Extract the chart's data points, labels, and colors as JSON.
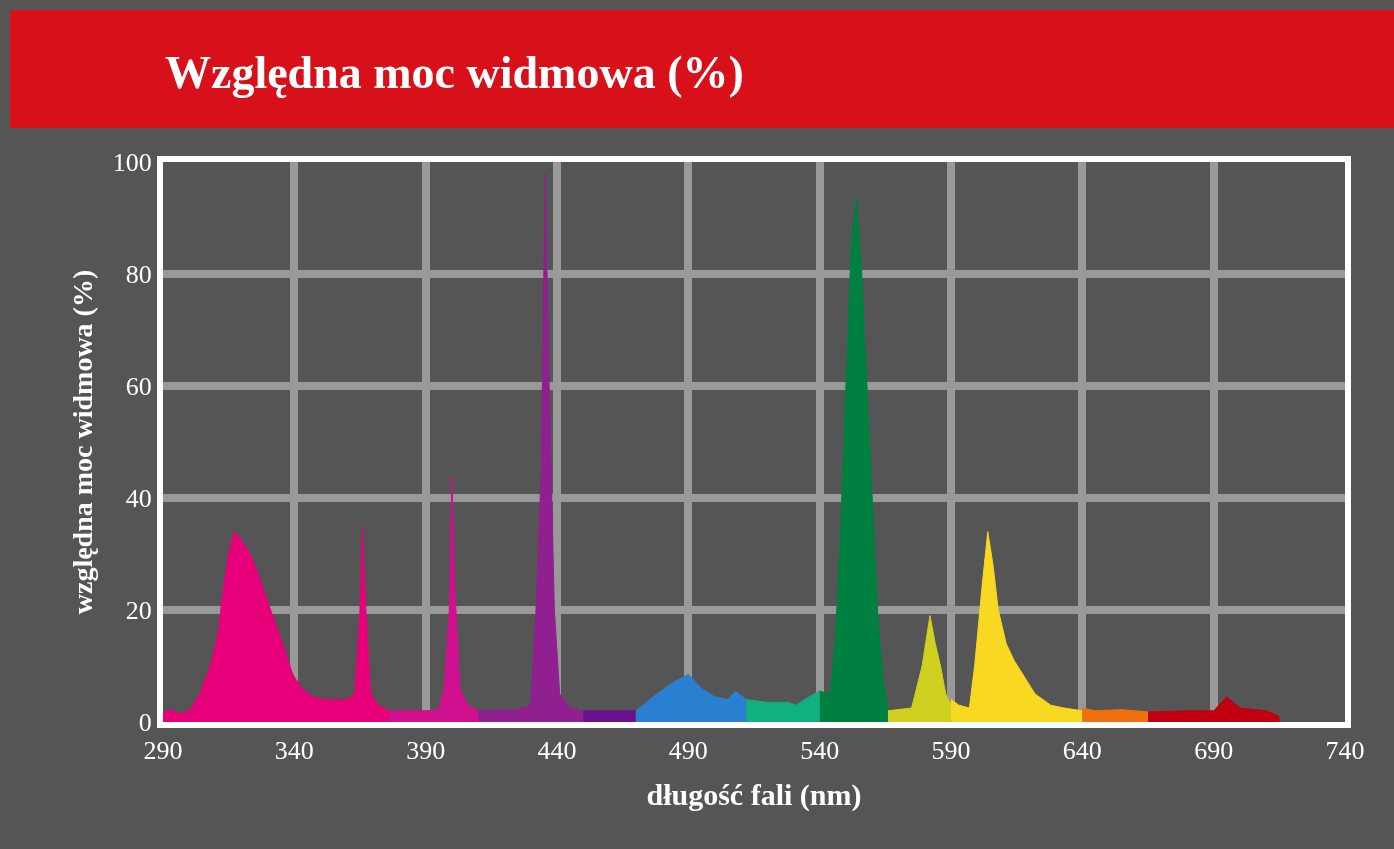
{
  "chart_data": {
    "type": "area",
    "title": "Względna moc widmowa (%)",
    "xlabel": "długość fali (nm)",
    "ylabel": "względna moc widmowa (%)",
    "xlim": [
      290,
      740
    ],
    "xticks": [
      290,
      340,
      390,
      440,
      490,
      540,
      590,
      640,
      690,
      740
    ],
    "ylim": [
      0,
      100
    ],
    "yticks": [
      0,
      20,
      40,
      60,
      80,
      100
    ],
    "grid": true,
    "series": [
      {
        "color": "#e8007a",
        "x": [
          290,
          293,
          296,
          300,
          304,
          308,
          311,
          313,
          315,
          317,
          319,
          322,
          325,
          328,
          331,
          334,
          337,
          339,
          340,
          343,
          347,
          352,
          360,
          363,
          365,
          366,
          367,
          369,
          372,
          376
        ],
        "values": [
          1.6,
          2.2,
          1.5,
          2,
          5,
          10,
          16,
          24,
          30,
          34,
          33,
          31,
          28,
          24,
          20,
          16,
          12,
          9,
          8,
          6,
          4.5,
          4,
          4,
          5,
          20,
          35,
          22,
          5,
          3,
          2
        ]
      },
      {
        "color": "#d0108f",
        "x": [
          376,
          390,
          395,
          397,
          399,
          400,
          401,
          403,
          406,
          410
        ],
        "values": [
          2,
          2,
          2.2,
          6,
          20,
          44,
          25,
          6,
          3,
          2
        ]
      },
      {
        "color": "#90208f",
        "x": [
          410,
          425,
          430,
          432,
          434,
          435.5,
          437,
          439,
          441,
          445,
          450
        ],
        "values": [
          2,
          2.2,
          3,
          20,
          45,
          98,
          60,
          20,
          5,
          2.5,
          2
        ]
      },
      {
        "color": "#6a1090",
        "x": [
          450,
          460,
          470
        ],
        "values": [
          2,
          2,
          2
        ]
      },
      {
        "color": "#2a80d0",
        "x": [
          470,
          478,
          484,
          490,
          495,
          500,
          505,
          508,
          512
        ],
        "values": [
          2,
          5,
          7,
          8.5,
          6,
          4.5,
          4,
          5.5,
          4
        ]
      },
      {
        "color": "#10b080",
        "x": [
          512,
          520,
          528,
          531,
          536,
          540
        ],
        "values": [
          4,
          3.5,
          3.5,
          3,
          4.5,
          5.5
        ]
      },
      {
        "color": "#008040",
        "x": [
          540,
          544,
          546,
          548,
          550,
          552,
          554,
          556,
          558,
          560,
          562,
          564,
          566
        ],
        "values": [
          5.5,
          5,
          15,
          35,
          60,
          85,
          94,
          80,
          60,
          40,
          20,
          8,
          2
        ]
      },
      {
        "color": "#d0d020",
        "x": [
          566,
          575,
          579,
          582,
          584,
          586,
          588,
          590
        ],
        "values": [
          2,
          2.5,
          10,
          19,
          14,
          10,
          5,
          3
        ]
      },
      {
        "color": "#f8d820",
        "x": [
          590,
          593,
          597,
          599,
          602,
          604,
          606,
          608,
          611,
          614,
          618,
          622,
          628,
          633,
          640
        ],
        "values": [
          4,
          3,
          2.5,
          10,
          25,
          34,
          28,
          20,
          14,
          11,
          8,
          5,
          3,
          2.5,
          2
        ]
      },
      {
        "color": "#f07010",
        "x": [
          640,
          645,
          655,
          665
        ],
        "values": [
          2.5,
          2,
          2.2,
          1.8
        ]
      },
      {
        "color": "#c00010",
        "x": [
          665,
          680,
          690,
          695,
          700,
          710,
          715
        ],
        "values": [
          1.8,
          2,
          2,
          4.5,
          2.5,
          2,
          1
        ]
      }
    ]
  }
}
